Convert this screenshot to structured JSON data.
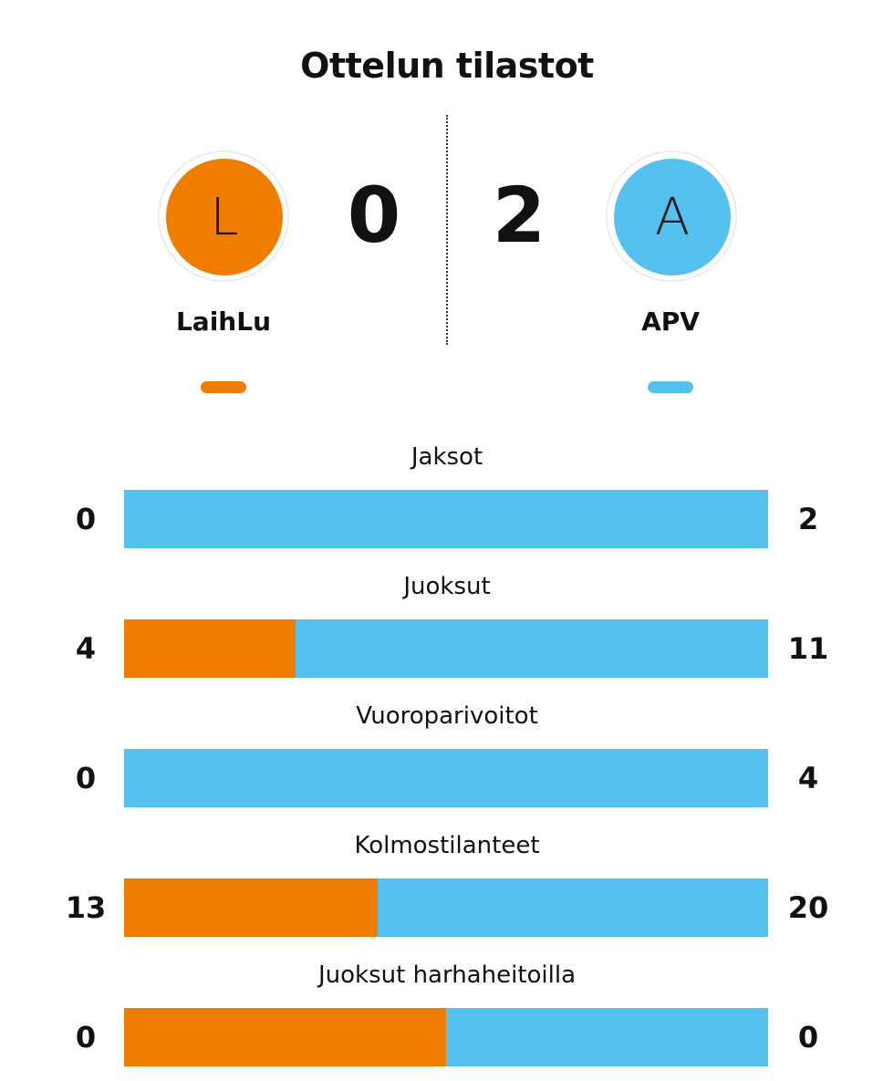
{
  "title": "Ottelun tilastot",
  "colors": {
    "home": "#ef7d00",
    "away": "#55c1ef"
  },
  "home": {
    "name": "LaihLu",
    "initial": "L",
    "score": "0"
  },
  "away": {
    "name": "APV",
    "initial": "A",
    "score": "2"
  },
  "chart_data": {
    "type": "bar",
    "orientation": "horizontal",
    "stacked": "percent",
    "categories": [
      "Jaksot",
      "Juoksut",
      "Vuoroparivoitot",
      "Kolmostilanteet",
      "Juoksut harhaheitoilla"
    ],
    "series": [
      {
        "name": "LaihLu",
        "values": [
          0,
          4,
          0,
          13,
          0
        ]
      },
      {
        "name": "APV",
        "values": [
          2,
          11,
          4,
          20,
          0
        ]
      }
    ]
  }
}
